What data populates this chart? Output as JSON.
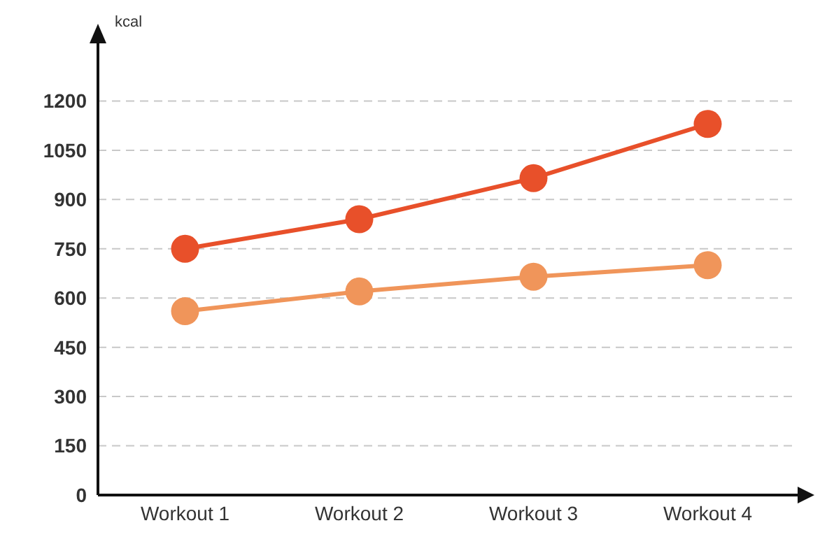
{
  "chart_data": {
    "type": "line",
    "ylabel": "kcal",
    "categories": [
      "Workout 1",
      "Workout 2",
      "Workout 3",
      "Workout 4"
    ],
    "series": [
      {
        "color": "#e8502a",
        "values": [
          750,
          840,
          965,
          1130
        ]
      },
      {
        "color": "#f0955a",
        "values": [
          560,
          620,
          665,
          700
        ]
      }
    ],
    "ylim": [
      0,
      1350
    ],
    "yticks": [
      0,
      150,
      300,
      450,
      600,
      750,
      900,
      1050,
      1200
    ],
    "grid": "y",
    "marker": "circle",
    "line_style": "solid",
    "legend": false
  }
}
